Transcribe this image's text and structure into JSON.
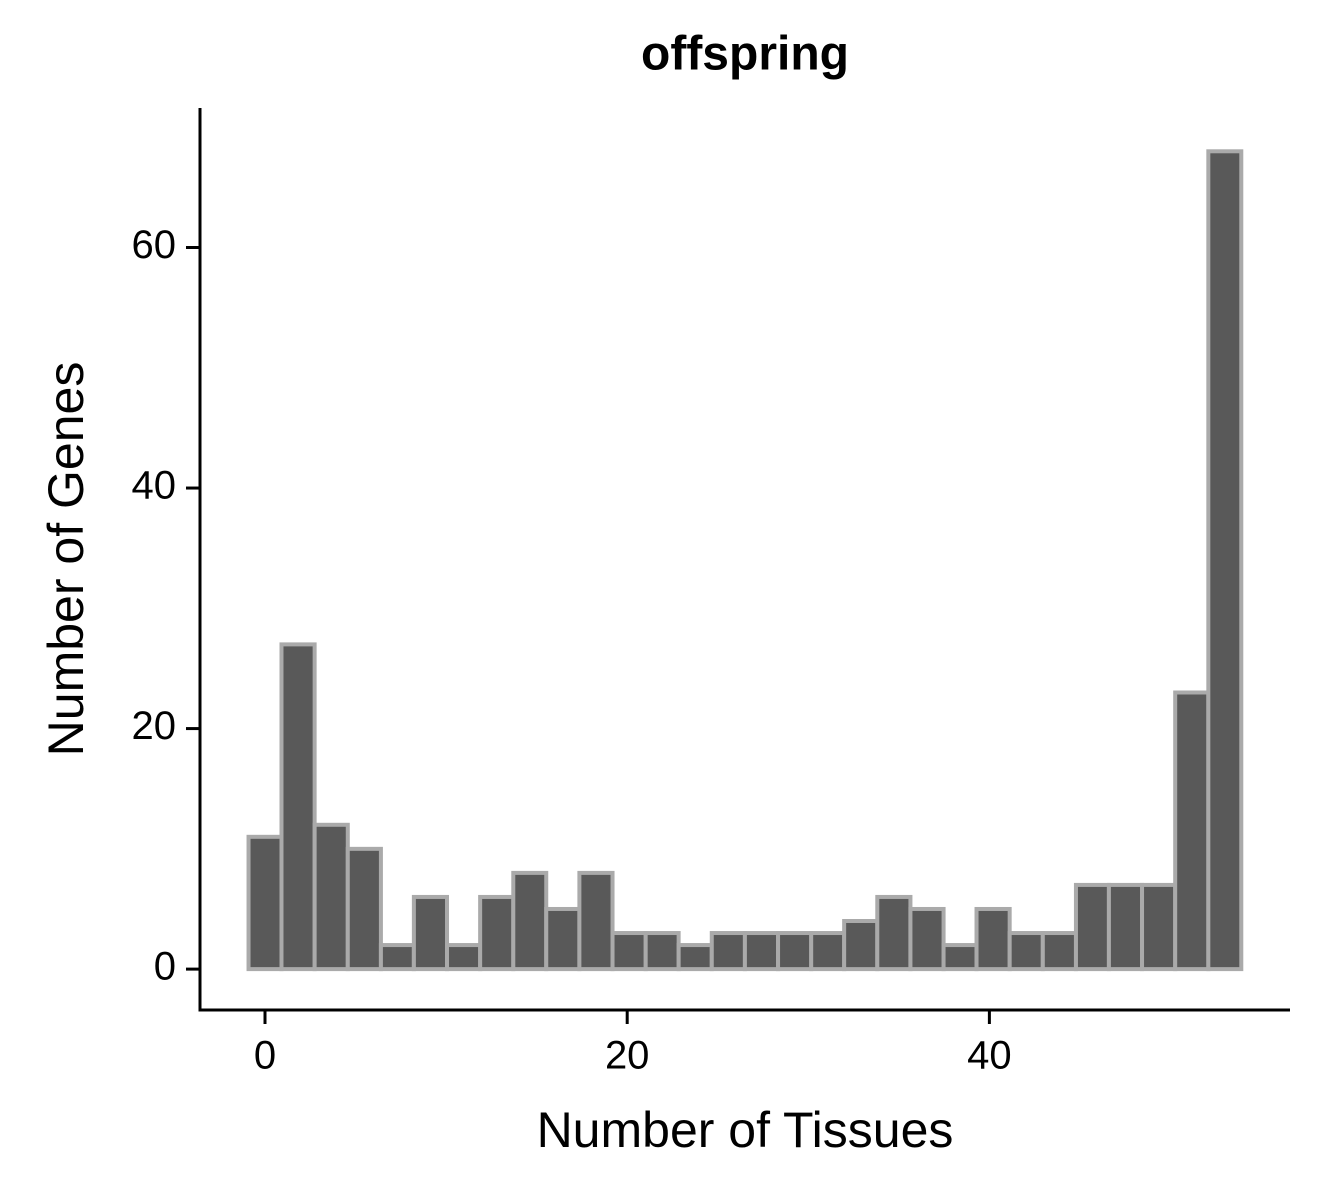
{
  "chart_data": {
    "type": "histogram",
    "title": "offspring",
    "x_label": "Number of Tissues",
    "y_label": "Number of Genes",
    "bins": [
      -0.91,
      0.91,
      2.74,
      4.57,
      6.4,
      8.22,
      10.05,
      11.88,
      13.71,
      15.53,
      17.36,
      19.19,
      21.02,
      22.84,
      24.67,
      26.5,
      28.33,
      30.16,
      31.98,
      33.81,
      35.64,
      37.47,
      39.29,
      41.12,
      42.95,
      44.78,
      46.6,
      48.43,
      50.26,
      52.09,
      53.91
    ],
    "values": [
      11,
      27,
      12,
      10,
      2,
      6,
      2,
      6,
      8,
      5,
      8,
      3,
      3,
      2,
      3,
      3,
      3,
      3,
      4,
      6,
      5,
      2,
      5,
      3,
      3,
      7,
      7,
      7,
      23,
      68
    ],
    "color": "#595959",
    "edgecolor": "#aaaaaa",
    "xlim": [
      -3.59,
      56.6
    ],
    "xticks": [
      0,
      20,
      40
    ],
    "ylim": [
      -3.4,
      71.6
    ],
    "yticks": [
      0,
      20,
      40,
      60
    ],
    "grid": false
  }
}
